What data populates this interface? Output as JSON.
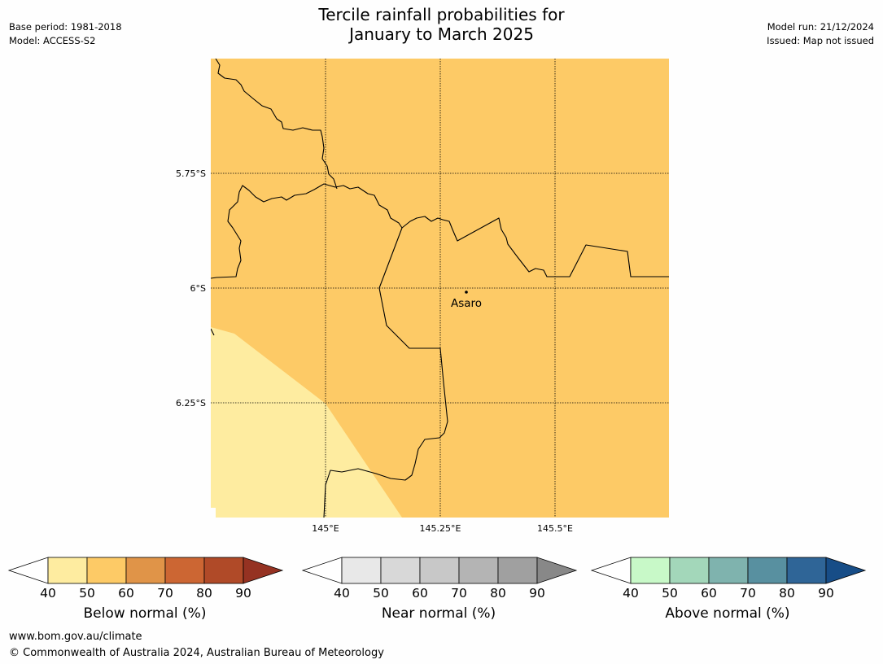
{
  "title": {
    "line1": "Tercile rainfall probabilities for",
    "line2": "January to March 2025"
  },
  "meta_left": {
    "base_period": "Base period: 1981-2018",
    "model": "Model: ACCESS-S2"
  },
  "meta_right": {
    "model_run": "Model run: 21/12/2024",
    "issued": "Issued: Map not issued"
  },
  "map": {
    "lat_labels": [
      "5.75°S",
      "6°S",
      "6.25°S"
    ],
    "lon_labels": [
      "145°E",
      "145.25°E",
      "145.5°E"
    ],
    "place": "Asaro",
    "colors": {
      "fill_50_60": "#fdca66",
      "fill_40_50": "#feeca0",
      "gridline": "#000000",
      "border": "#000000"
    }
  },
  "colorbars": [
    {
      "label": "Below normal (%)",
      "ticks": [
        "40",
        "50",
        "60",
        "70",
        "80",
        "90"
      ],
      "colors": [
        "#ffffff",
        "#feeca0",
        "#fdca66",
        "#e09448",
        "#cc6633",
        "#b04a28",
        "#953222"
      ]
    },
    {
      "label": "Near normal (%)",
      "ticks": [
        "40",
        "50",
        "60",
        "70",
        "80",
        "90"
      ],
      "colors": [
        "#ffffff",
        "#e8e8e8",
        "#d8d8d8",
        "#c8c8c8",
        "#b4b4b4",
        "#a0a0a0",
        "#888888"
      ]
    },
    {
      "label": "Above normal (%)",
      "ticks": [
        "40",
        "50",
        "60",
        "70",
        "80",
        "90"
      ],
      "colors": [
        "#ffffff",
        "#c8f9c8",
        "#a3d7ba",
        "#7fb3ae",
        "#5890a0",
        "#2f6597",
        "#174d87"
      ]
    }
  ],
  "footer": {
    "url": "www.bom.gov.au/climate",
    "copyright": "© Commonwealth of Australia 2024, Australian Bureau of Meteorology"
  }
}
